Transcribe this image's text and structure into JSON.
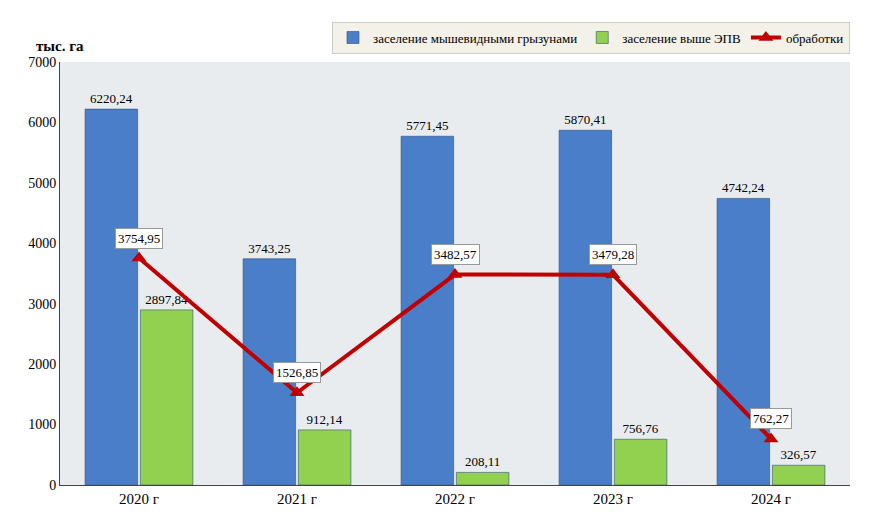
{
  "chart_data": {
    "type": "bar",
    "ylabel": "тыс. га",
    "categories": [
      "2020 г",
      "2021 г",
      "2022 г",
      "2023 г",
      "2024 г"
    ],
    "series": [
      {
        "name": "заселение мышевидными грызунами",
        "type": "bar",
        "color": "#4a7ec8",
        "values": [
          6220.24,
          3743.25,
          5771.45,
          5870.41,
          4742.24
        ],
        "value_labels": [
          "6220,24",
          "3743,25",
          "5771,45",
          "5870,41",
          "4742,24"
        ]
      },
      {
        "name": "заселение выше ЭПВ",
        "type": "bar",
        "color": "#92d050",
        "values": [
          2897.84,
          912.14,
          208.11,
          756.76,
          326.57
        ],
        "value_labels": [
          "2897,84",
          "912,14",
          "208,11",
          "756,76",
          "326,57"
        ]
      },
      {
        "name": "обработки",
        "type": "line",
        "color": "#c00000",
        "marker": "triangle-up",
        "values": [
          3754.95,
          1526.85,
          3482.57,
          3479.28,
          762.27
        ],
        "value_labels": [
          "3754,95",
          "1526,85",
          "3482,57",
          "3479,28",
          "762,27"
        ]
      }
    ],
    "ylim": [
      0,
      7000
    ],
    "yticks": [
      0,
      1000,
      2000,
      3000,
      4000,
      5000,
      6000,
      7000
    ],
    "grid": false,
    "legend": "top",
    "data_labels": true
  }
}
